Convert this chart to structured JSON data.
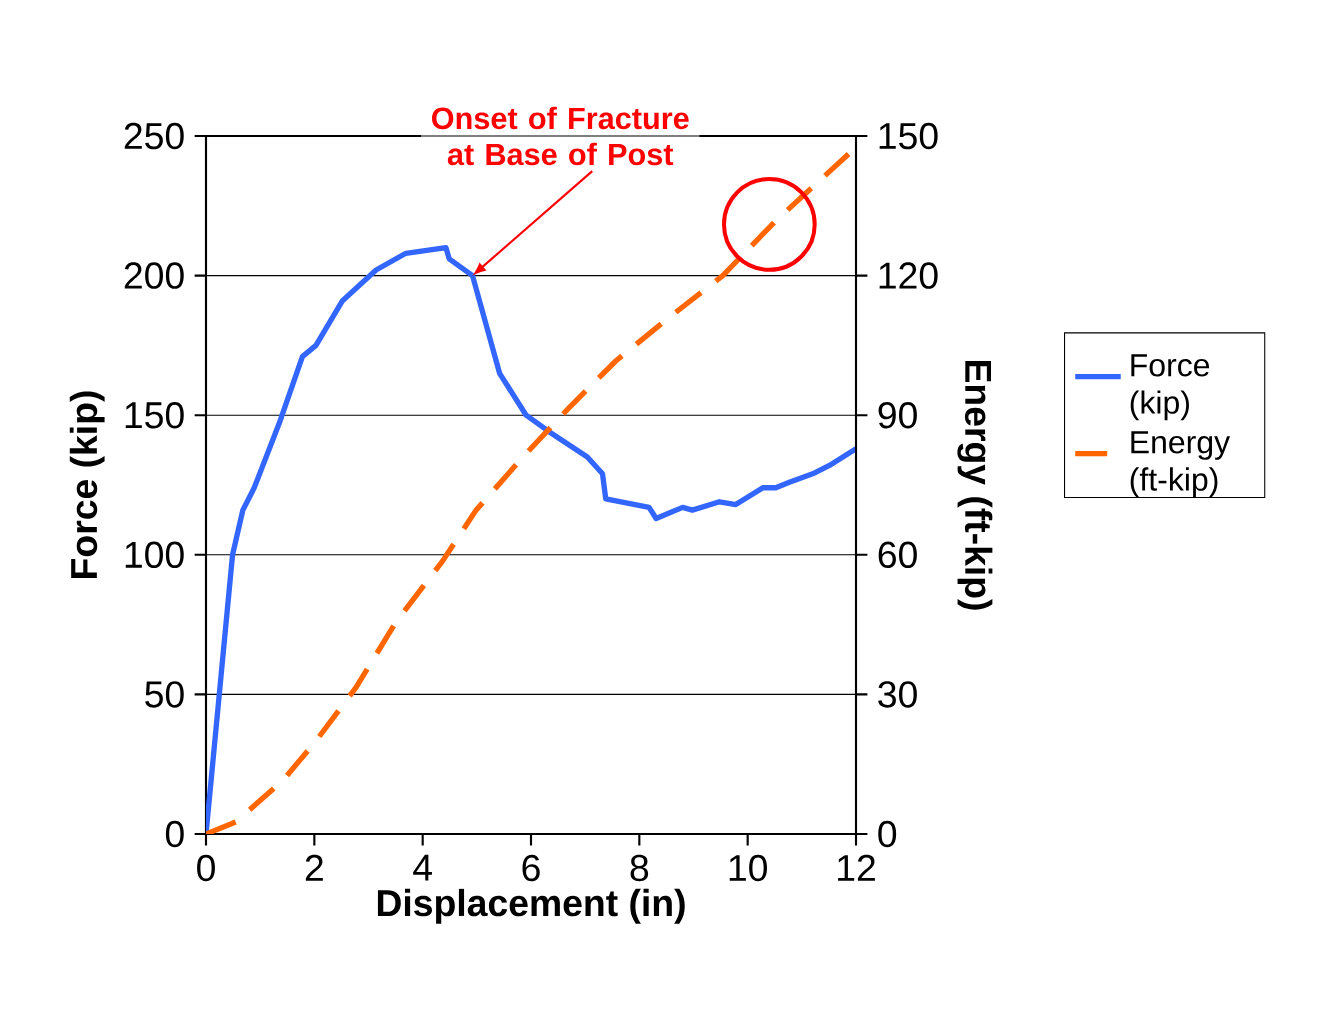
{
  "chart_data": {
    "type": "line",
    "xlabel": "Displacement (in)",
    "ylabel": "Force (kip)",
    "y2label": "Energy (ft-kip)",
    "xlim": [
      0,
      12
    ],
    "xticks": [
      0,
      2,
      4,
      6,
      8,
      10,
      12
    ],
    "ylim": [
      0,
      250
    ],
    "yticks": [
      0,
      50,
      100,
      150,
      200,
      250
    ],
    "y2lim": [
      0,
      150
    ],
    "y2ticks": [
      0,
      30,
      60,
      90,
      120,
      150
    ],
    "grid": "y",
    "legend": "right",
    "marker": "none",
    "annotations": [
      {
        "text": "Onset of Fracture at Base of Post",
        "x": 4.92,
        "y": 200
      }
    ],
    "series": [
      {
        "name": "Force (kip)",
        "color": "#3366ff",
        "line_style": "solid",
        "x": [
          0,
          0.49,
          0.68,
          0.89,
          1.35,
          1.78,
          2.03,
          2.52,
          3.14,
          3.69,
          4.43,
          4.49,
          4.92,
          5.42,
          5.91,
          6.34,
          7.04,
          7.32,
          7.38,
          8.18,
          8.31,
          8.8,
          8.98,
          9.48,
          9.78,
          10.28,
          10.52,
          10.77,
          11.2,
          11.51,
          12
        ],
        "values": [
          0,
          100,
          116,
          124,
          147,
          171,
          175,
          191,
          202,
          208,
          210,
          206,
          200,
          165,
          150,
          144,
          135,
          129,
          120,
          117,
          113,
          117,
          116,
          119,
          118,
          124,
          124,
          126,
          129,
          132,
          138
        ]
      },
      {
        "name": "Energy (ft-kip)",
        "color": "#ff6600",
        "line_style": "dashed",
        "axis": "y2",
        "x": [
          0,
          0.55,
          1.42,
          2.03,
          2.77,
          3.51,
          4.37,
          4.98,
          5.85,
          6.71,
          7.57,
          8.55,
          9.54,
          10.52,
          12
        ],
        "values": [
          0,
          2.6,
          11.5,
          20,
          31.5,
          45.6,
          58.7,
          69.5,
          81,
          91.7,
          101.7,
          111,
          120,
          131.8,
          147.6
        ]
      }
    ]
  }
}
